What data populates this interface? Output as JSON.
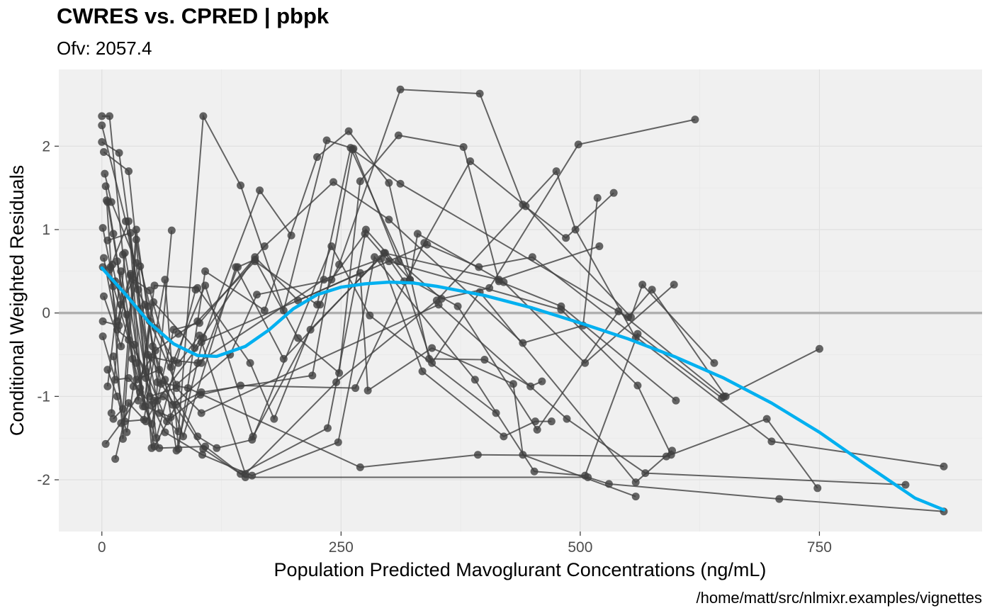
{
  "title": "CWRES vs. CPRED | pbpk",
  "subtitle": "Ofv: 2057.4",
  "caption": "/home/matt/src/nlmixr.examples/vignettes",
  "chart_data": {
    "type": "scatter",
    "title": "CWRES vs. CPRED | pbpk",
    "subtitle": "Ofv: 2057.4",
    "xlabel": "Population Predicted Mavoglurant Concentrations (ng/mL)",
    "ylabel": "Conditional Weighted Residuals",
    "xlim": [
      -45,
      920
    ],
    "ylim": [
      -2.62,
      2.92
    ],
    "x_ticks": [
      0,
      250,
      500,
      750
    ],
    "x_tick_labels": [
      "0",
      "250",
      "500",
      "750"
    ],
    "y_ticks": [
      -2,
      -1,
      0,
      1,
      2
    ],
    "y_tick_labels": [
      "-2",
      "-1",
      "0",
      "1",
      "2"
    ],
    "grid": true,
    "reference_line_y": 0,
    "colors": {
      "panel": "#f0f0f0",
      "grid": "#e0e0e0",
      "reference": "#b0b0b0",
      "points": "#404040",
      "smooth": "#00b0f0"
    },
    "subjects": [
      [
        [
          0,
          2.36
        ],
        [
          8,
          2.36
        ],
        [
          22,
          0.7
        ],
        [
          45,
          -1.12
        ],
        [
          72,
          -1.25
        ]
      ],
      [
        [
          0,
          2.25
        ],
        [
          25,
          1.1
        ],
        [
          38,
          0.28
        ],
        [
          57,
          -1.5
        ],
        [
          98,
          0.28
        ]
      ],
      [
        [
          0,
          2.05
        ],
        [
          18,
          1.92
        ],
        [
          40,
          0.05
        ],
        [
          60,
          -1.2
        ],
        [
          80,
          -1.42
        ],
        [
          106,
          2.36
        ],
        [
          145,
          1.53
        ],
        [
          190,
          0.03
        ],
        [
          235,
          2.07
        ],
        [
          263,
          1.97
        ],
        [
          310,
          0.62
        ],
        [
          355,
          0.17
        ],
        [
          405,
          0.3
        ],
        [
          498,
          2.02
        ],
        [
          620,
          2.32
        ]
      ],
      [
        [
          2,
          1.93
        ],
        [
          28,
          1.7
        ],
        [
          48,
          -0.5
        ],
        [
          66,
          -0.8
        ],
        [
          78,
          -1.65
        ],
        [
          106,
          -0.3
        ],
        [
          165,
          1.47
        ],
        [
          198,
          0.93
        ]
      ],
      [
        [
          3,
          1.67
        ],
        [
          10,
          1.33
        ],
        [
          36,
          0.6
        ],
        [
          52,
          -1.62
        ],
        [
          73,
          0.99
        ]
      ],
      [
        [
          4,
          1.52
        ],
        [
          12,
          0.95
        ],
        [
          32,
          -0.55
        ],
        [
          52,
          -1.33
        ],
        [
          75,
          -0.2
        ],
        [
          102,
          -0.12
        ],
        [
          170,
          0.8
        ],
        [
          242,
          1.57
        ],
        [
          300,
          1.12
        ],
        [
          440,
          -0.36
        ],
        [
          503,
          -0.15
        ],
        [
          518,
          1.38
        ]
      ],
      [
        [
          5,
          1.35
        ],
        [
          22,
          -1.51
        ],
        [
          36,
          0.88
        ],
        [
          48,
          0.08
        ],
        [
          53,
          -0.4
        ],
        [
          85,
          -1.48
        ],
        [
          140,
          0.55
        ],
        [
          190,
          -0.55
        ],
        [
          295,
          0.72
        ],
        [
          415,
          0.4
        ],
        [
          520,
          0.8
        ]
      ],
      [
        [
          6,
          1.33
        ],
        [
          16,
          0.62
        ],
        [
          38,
          -1.05
        ],
        [
          55,
          0.33
        ],
        [
          100,
          0.3
        ],
        [
          155,
          -0.6
        ],
        [
          180,
          -1.27
        ],
        [
          228,
          0.1
        ],
        [
          248,
          0.58
        ],
        [
          312,
          2.68
        ],
        [
          395,
          2.63
        ],
        [
          440,
          1.3
        ],
        [
          485,
          0.9
        ],
        [
          535,
          1.44
        ]
      ],
      [
        [
          1,
          1.02
        ],
        [
          9,
          0.55
        ],
        [
          28,
          1.1
        ],
        [
          43,
          -1.12
        ],
        [
          66,
          0.4
        ],
        [
          80,
          -1.63
        ],
        [
          108,
          0.5
        ],
        [
          170,
          0.03
        ],
        [
          225,
          1.87
        ],
        [
          258,
          2.18
        ],
        [
          300,
          1.56
        ],
        [
          342,
          -0.55
        ],
        [
          400,
          -0.56
        ],
        [
          448,
          -0.88
        ],
        [
          460,
          -0.82
        ]
      ],
      [
        [
          6,
          0.87
        ],
        [
          30,
          0.96
        ],
        [
          46,
          -0.78
        ],
        [
          50,
          -0.1
        ],
        [
          78,
          -0.86
        ],
        [
          104,
          -0.6
        ],
        [
          142,
          0.55
        ],
        [
          160,
          0.64
        ],
        [
          205,
          -0.3
        ],
        [
          248,
          -0.72
        ],
        [
          270,
          1.58
        ],
        [
          310,
          2.13
        ],
        [
          378,
          1.99
        ],
        [
          415,
          0.38
        ],
        [
          480,
          0.08
        ],
        [
          600,
          -1.05
        ]
      ],
      [
        [
          8,
          0.52
        ],
        [
          16,
          -0.1
        ],
        [
          30,
          0.47
        ],
        [
          40,
          -0.9
        ],
        [
          54,
          0.13
        ],
        [
          97,
          -0.42
        ],
        [
          160,
          0.67
        ],
        [
          205,
          0.15
        ],
        [
          270,
          0.48
        ],
        [
          278,
          -0.93
        ],
        [
          345,
          -0.42
        ],
        [
          430,
          -0.85
        ],
        [
          440,
          -1.7
        ],
        [
          558,
          -2.2
        ]
      ],
      [
        [
          11,
          0.58
        ],
        [
          20,
          0.1
        ],
        [
          33,
          0.4
        ],
        [
          50,
          0.27
        ],
        [
          72,
          -0.65
        ],
        [
          108,
          0.33
        ],
        [
          158,
          -1.48
        ],
        [
          218,
          -0.2
        ],
        [
          296,
          0.72
        ],
        [
          316,
          0.38
        ],
        [
          345,
          -0.6
        ],
        [
          395,
          0.25
        ],
        [
          558,
          -2.03
        ],
        [
          596,
          -1.65
        ]
      ],
      [
        [
          14,
          0.38
        ],
        [
          26,
          -0.02
        ],
        [
          36,
          -0.8
        ],
        [
          60,
          -0.68
        ],
        [
          100,
          -1.48
        ],
        [
          120,
          -1.62
        ],
        [
          157,
          -1.52
        ],
        [
          240,
          0.8
        ],
        [
          280,
          -0.03
        ],
        [
          412,
          -1.2
        ]
      ],
      [
        [
          1,
          0.55
        ],
        [
          12,
          0.32
        ],
        [
          28,
          -0.32
        ],
        [
          46,
          -0.7
        ],
        [
          68,
          -1.3
        ],
        [
          103,
          -0.98
        ],
        [
          145,
          -0.87
        ],
        [
          265,
          -0.9
        ],
        [
          337,
          0.84
        ],
        [
          385,
          1.82
        ],
        [
          443,
          1.28
        ],
        [
          553,
          -0.05
        ],
        [
          565,
          0.34
        ],
        [
          640,
          -0.6
        ]
      ],
      [
        [
          2,
          0.2
        ],
        [
          20,
          -0.4
        ],
        [
          40,
          0.56
        ],
        [
          56,
          -0.18
        ],
        [
          75,
          -0.57
        ],
        [
          100,
          -0.6
        ],
        [
          232,
          0.4
        ],
        [
          292,
          0.65
        ],
        [
          335,
          -0.7
        ],
        [
          420,
          -1.48
        ],
        [
          453,
          -1.3
        ],
        [
          470,
          -1.3
        ]
      ],
      [
        [
          1,
          -0.1
        ],
        [
          18,
          -0.15
        ],
        [
          30,
          0.45
        ],
        [
          45,
          0.1
        ],
        [
          62,
          -0.85
        ],
        [
          106,
          -1.63
        ],
        [
          145,
          -1.93
        ],
        [
          236,
          -1.38
        ],
        [
          276,
          1.0
        ],
        [
          322,
          0.4
        ],
        [
          372,
          0.08
        ],
        [
          455,
          -1.4
        ],
        [
          540,
          0.02
        ],
        [
          650,
          -1.0
        ]
      ],
      [
        [
          1,
          -0.28
        ],
        [
          14,
          -0.8
        ],
        [
          28,
          -0.78
        ],
        [
          52,
          -1.1
        ],
        [
          66,
          -1.43
        ],
        [
          105,
          -1.7
        ],
        [
          157,
          -1.95
        ],
        [
          247,
          -1.55
        ],
        [
          285,
          0.67
        ],
        [
          390,
          -0.8
        ],
        [
          452,
          -1.9
        ],
        [
          505,
          -1.95
        ],
        [
          560,
          -0.25
        ],
        [
          648,
          -1.02
        ]
      ],
      [
        [
          6,
          -0.68
        ],
        [
          16,
          -1.0
        ],
        [
          26,
          -1.43
        ],
        [
          33,
          -0.88
        ],
        [
          52,
          -0.53
        ],
        [
          80,
          -0.6
        ],
        [
          102,
          -0.27
        ],
        [
          150,
          -1.93
        ],
        [
          245,
          -0.83
        ],
        [
          350,
          0.15
        ],
        [
          475,
          1.7
        ],
        [
          495,
          1.0
        ],
        [
          558,
          -0.3
        ]
      ],
      [
        [
          6,
          -0.88
        ],
        [
          20,
          0.5
        ],
        [
          36,
          -0.6
        ],
        [
          55,
          -1.6
        ],
        [
          78,
          -1.1
        ],
        [
          104,
          -0.95
        ],
        [
          220,
          -0.75
        ],
        [
          262,
          1.96
        ],
        [
          312,
          1.55
        ],
        [
          550,
          -0.05
        ],
        [
          575,
          0.28
        ],
        [
          652,
          -1.0
        ],
        [
          750,
          -0.43
        ]
      ],
      [
        [
          12,
          -0.52
        ],
        [
          24,
          -1.3
        ],
        [
          44,
          -1.28
        ],
        [
          56,
          -0.45
        ],
        [
          80,
          -0.25
        ],
        [
          100,
          -0.1
        ],
        [
          160,
          0.62
        ],
        [
          225,
          0.1
        ],
        [
          260,
          1.98
        ],
        [
          322,
          0.4
        ],
        [
          330,
          0.95
        ],
        [
          420,
          0.37
        ],
        [
          505,
          -0.6
        ],
        [
          598,
          0.34
        ]
      ],
      [
        [
          12,
          -1.27
        ],
        [
          22,
          -1.15
        ],
        [
          36,
          1.0
        ],
        [
          58,
          -0.83
        ],
        [
          90,
          -0.9
        ],
        [
          270,
          -1.85
        ],
        [
          393,
          -1.7
        ],
        [
          590,
          -1.72
        ],
        [
          695,
          -1.27
        ],
        [
          748,
          -2.1
        ]
      ],
      [
        [
          14,
          -1.75
        ],
        [
          28,
          -1.08
        ],
        [
          46,
          -1.3
        ],
        [
          58,
          -1.05
        ],
        [
          104,
          -0.35
        ],
        [
          340,
          0.82
        ],
        [
          394,
          0.55
        ],
        [
          450,
          0.67
        ],
        [
          700,
          -1.54
        ],
        [
          880,
          -1.84
        ]
      ],
      [
        [
          4,
          -1.57
        ],
        [
          20,
          -1.32
        ],
        [
          40,
          -0.95
        ],
        [
          60,
          -1.62
        ],
        [
          108,
          -1.6
        ],
        [
          150,
          -1.97
        ],
        [
          508,
          -1.97
        ],
        [
          530,
          -2.05
        ],
        [
          708,
          -2.23
        ],
        [
          880,
          -2.38
        ]
      ],
      [
        [
          10,
          -1.2
        ],
        [
          24,
          0.72
        ],
        [
          50,
          -1.0
        ],
        [
          78,
          -0.9
        ],
        [
          104,
          -1.2
        ],
        [
          352,
          0.1
        ],
        [
          486,
          -1.27
        ],
        [
          568,
          -1.92
        ],
        [
          840,
          -2.06
        ]
      ],
      [
        [
          2,
          0.66
        ],
        [
          16,
          -0.2
        ],
        [
          34,
          -0.38
        ],
        [
          54,
          -1.05
        ],
        [
          64,
          -1.0
        ],
        [
          74,
          -1.1
        ],
        [
          134,
          -0.5
        ],
        [
          162,
          0.22
        ],
        [
          240,
          0.4
        ],
        [
          275,
          0.95
        ],
        [
          300,
          0.62
        ],
        [
          480,
          0.04
        ],
        [
          560,
          -0.87
        ],
        [
          595,
          -1.7
        ]
      ]
    ],
    "smooth_curve": [
      [
        0,
        0.54
      ],
      [
        25,
        0.22
      ],
      [
        50,
        -0.12
      ],
      [
        75,
        -0.37
      ],
      [
        100,
        -0.51
      ],
      [
        120,
        -0.52
      ],
      [
        150,
        -0.4
      ],
      [
        175,
        -0.2
      ],
      [
        200,
        0.05
      ],
      [
        225,
        0.22
      ],
      [
        250,
        0.31
      ],
      [
        275,
        0.35
      ],
      [
        300,
        0.37
      ],
      [
        325,
        0.36
      ],
      [
        350,
        0.32
      ],
      [
        400,
        0.21
      ],
      [
        450,
        0.06
      ],
      [
        500,
        -0.12
      ],
      [
        550,
        -0.31
      ],
      [
        600,
        -0.53
      ],
      [
        650,
        -0.78
      ],
      [
        700,
        -1.08
      ],
      [
        750,
        -1.43
      ],
      [
        800,
        -1.83
      ],
      [
        850,
        -2.22
      ],
      [
        880,
        -2.36
      ]
    ]
  }
}
